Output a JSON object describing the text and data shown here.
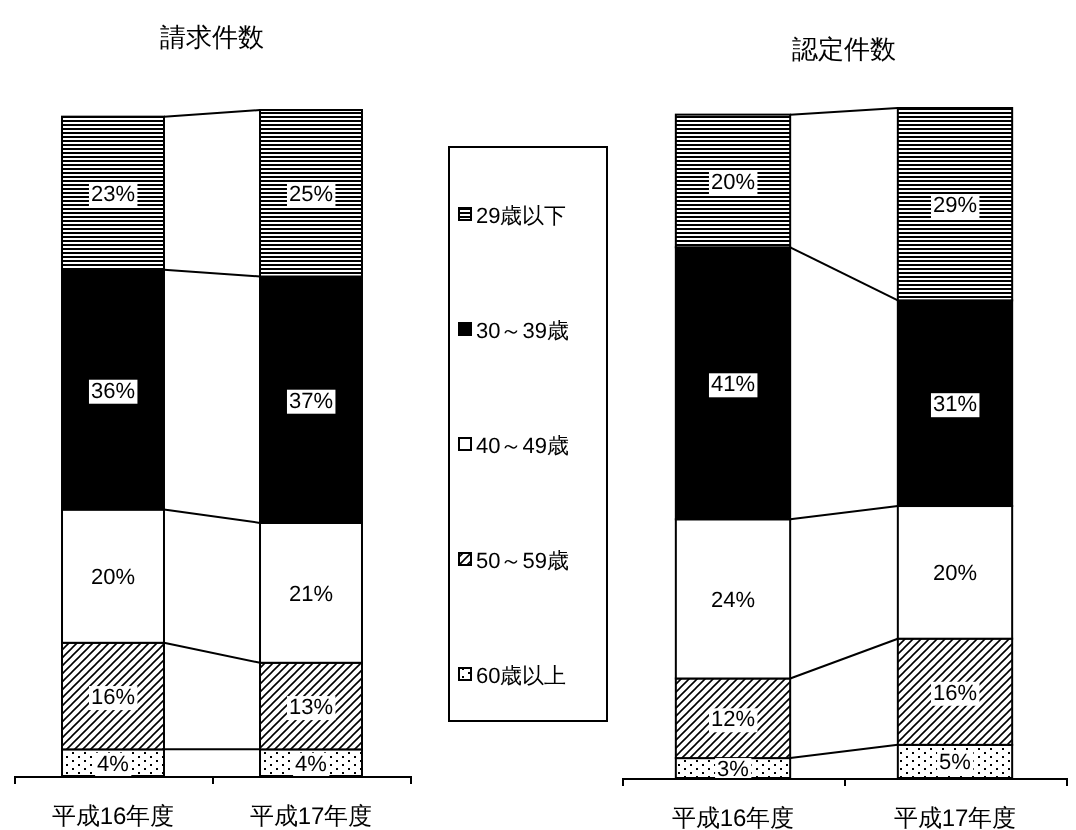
{
  "chart_data": [
    {
      "type": "bar",
      "stacked": true,
      "title": "請求件数",
      "categories": [
        "平成16年度",
        "平成17年度"
      ],
      "ylim": [
        0,
        100
      ],
      "tick_labels": "x",
      "legend": "right",
      "series": [
        {
          "name": "60歳以上",
          "color": "#000000",
          "values": [
            4,
            4
          ],
          "value_labels": [
            "4%",
            "4%"
          ]
        },
        {
          "name": "50～59歳",
          "color": "#000000",
          "values": [
            16,
            13
          ],
          "value_labels": [
            "16%",
            "13%"
          ]
        },
        {
          "name": "40～49歳",
          "color": "#ffffff",
          "values": [
            20,
            21
          ],
          "value_labels": [
            "20%",
            "21%"
          ]
        },
        {
          "name": "30～39歳",
          "color": "#000000",
          "values": [
            36,
            37
          ],
          "value_labels": [
            "36%",
            "37%"
          ]
        },
        {
          "name": "29歳以下",
          "color": "#000000",
          "values": [
            23,
            25
          ],
          "value_labels": [
            "23%",
            "25%"
          ]
        }
      ]
    },
    {
      "type": "bar",
      "stacked": true,
      "title": "認定件数",
      "categories": [
        "平成16年度",
        "平成17年度"
      ],
      "ylim": [
        0,
        101
      ],
      "tick_labels": "x",
      "series": [
        {
          "color": "#000000",
          "values": [
            3,
            5
          ],
          "value_labels": [
            "3%",
            "5%"
          ]
        },
        {
          "color": "#000000",
          "values": [
            12,
            16
          ],
          "value_labels": [
            "12%",
            "16%"
          ]
        },
        {
          "color": "#ffffff",
          "values": [
            24,
            20
          ],
          "value_labels": [
            "24%",
            "20%"
          ]
        },
        {
          "color": "#000000",
          "values": [
            41,
            31
          ],
          "value_labels": [
            "41%",
            "31%"
          ]
        },
        {
          "color": "#000000",
          "values": [
            20,
            29
          ],
          "value_labels": [
            "20%",
            "29%"
          ]
        }
      ]
    }
  ]
}
